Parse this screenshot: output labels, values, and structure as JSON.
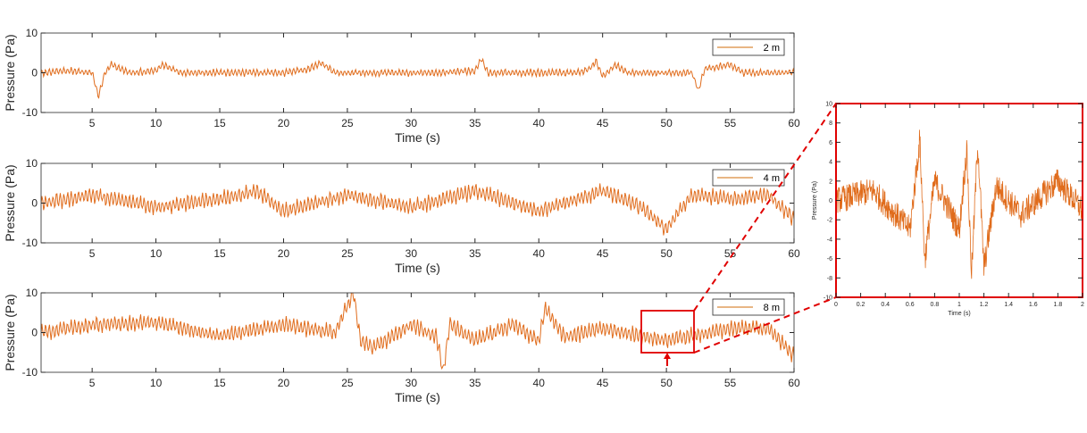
{
  "colors": {
    "signal": "#e06c1c",
    "axis": "#262626",
    "highlight": "#e00000",
    "legend_line": "#d98a3a"
  },
  "chart_data": [
    {
      "type": "line",
      "xlabel": "Time (s)",
      "ylabel": "Pressure (Pa)",
      "xlim": [
        1,
        60
      ],
      "ylim": [
        -10,
        10
      ],
      "xticks": [
        5,
        10,
        15,
        20,
        25,
        30,
        35,
        40,
        45,
        50,
        55,
        60
      ],
      "yticks": [
        -10,
        0,
        10
      ],
      "grid": false,
      "legend_position": "top-right",
      "series": [
        {
          "name": "2 m",
          "x": [
            1,
            3,
            5,
            5.5,
            6,
            6.5,
            8,
            10,
            10.5,
            12,
            15,
            20,
            22,
            23,
            24,
            26,
            28,
            30,
            32,
            35,
            35.5,
            36,
            38,
            40,
            43,
            44,
            44.5,
            45,
            46,
            47,
            50,
            52,
            52.5,
            53,
            55,
            56,
            58,
            59,
            60
          ],
          "y": [
            0,
            0.5,
            0,
            -6,
            0,
            2,
            0,
            0.5,
            2,
            0,
            0,
            0,
            1,
            2.5,
            0,
            0,
            0,
            0,
            0,
            0.5,
            3.5,
            0,
            0,
            0,
            0,
            1,
            3,
            -1,
            2,
            0,
            0,
            0,
            -4.5,
            1,
            2,
            0,
            0,
            0,
            0
          ]
        }
      ]
    },
    {
      "type": "line",
      "xlabel": "Time (s)",
      "ylabel": "Pressure (Pa)",
      "xlim": [
        1,
        60
      ],
      "ylim": [
        -10,
        10
      ],
      "xticks": [
        5,
        10,
        15,
        20,
        25,
        30,
        35,
        40,
        45,
        50,
        55,
        60
      ],
      "yticks": [
        -10,
        0,
        10
      ],
      "grid": false,
      "legend_position": "top-right",
      "series": [
        {
          "name": "4 m",
          "x": [
            1,
            5,
            10,
            15,
            18,
            20,
            25,
            30,
            35,
            40,
            44,
            45,
            48,
            50,
            52,
            55,
            58,
            60
          ],
          "y": [
            0,
            2,
            -1,
            1,
            3,
            -2,
            2,
            -1,
            3,
            -2,
            2,
            3,
            -1,
            -6.5,
            2,
            1,
            2,
            -4
          ]
        }
      ]
    },
    {
      "type": "line",
      "xlabel": "Time (s)",
      "ylabel": "Pressure (Pa)",
      "xlim": [
        1,
        60
      ],
      "ylim": [
        -10,
        10
      ],
      "xticks": [
        5,
        10,
        15,
        20,
        25,
        30,
        35,
        40,
        45,
        50,
        55,
        60
      ],
      "yticks": [
        -10,
        0,
        10
      ],
      "grid": false,
      "legend_position": "top-right",
      "series": [
        {
          "name": "8 m",
          "x": [
            1,
            5,
            10,
            15,
            20,
            24,
            25.5,
            26,
            27,
            28,
            30,
            32,
            32.5,
            33,
            35,
            38,
            40,
            40.5,
            42,
            45,
            50,
            55,
            58,
            60
          ],
          "y": [
            0,
            2,
            2.5,
            -1,
            2,
            0,
            10,
            -2,
            -4,
            -2,
            2,
            -1,
            -10,
            2,
            -2,
            2,
            -2,
            6,
            -1,
            1,
            -2,
            1,
            1,
            -6
          ]
        }
      ]
    },
    {
      "type": "line",
      "xlabel": "Time (s)",
      "ylabel": "Pressure (Pa)",
      "xlim": [
        0,
        2
      ],
      "ylim": [
        -10,
        10
      ],
      "xticks": [
        0,
        0.2,
        0.4,
        0.6,
        0.8,
        1,
        1.2,
        1.4,
        1.6,
        1.8,
        2
      ],
      "yticks": [
        -10,
        -8,
        -6,
        -4,
        -2,
        0,
        2,
        4,
        6,
        8,
        10
      ],
      "grid": false,
      "series": [
        {
          "x": [
            0,
            0.3,
            0.6,
            0.68,
            0.72,
            0.8,
            1.0,
            1.06,
            1.1,
            1.15,
            1.2,
            1.3,
            1.5,
            1.8,
            2.0
          ],
          "y": [
            0,
            1,
            -3,
            6.3,
            -6.2,
            2,
            -3,
            5.2,
            -7.5,
            6,
            -7,
            1.5,
            -1.5,
            2,
            -1
          ]
        }
      ]
    }
  ]
}
